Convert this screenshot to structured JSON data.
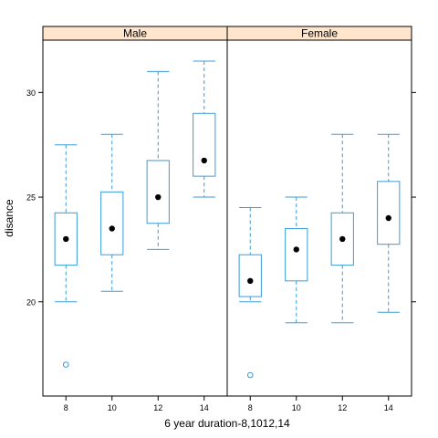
{
  "chart_data": {
    "type": "boxplot",
    "title": "",
    "xlabel": "6 year duration-8,1012,14",
    "ylabel": "disance",
    "ylim": [
      15.5,
      32.5
    ],
    "yticks": [
      20,
      25,
      30
    ],
    "categories": [
      "8",
      "10",
      "12",
      "14"
    ],
    "colors": {
      "box": "#3a9ad9",
      "strip_bg": "#ffe5cc",
      "median_dot": "#000000"
    },
    "panels": [
      {
        "name": "Male",
        "boxes": [
          {
            "x": "8",
            "min": 20.0,
            "q1": 21.75,
            "median": 23.0,
            "q3": 24.25,
            "max": 27.5,
            "outliers": [
              17.0
            ]
          },
          {
            "x": "10",
            "min": 20.5,
            "q1": 22.25,
            "median": 23.5,
            "q3": 25.25,
            "max": 28.0,
            "outliers": []
          },
          {
            "x": "12",
            "min": 22.5,
            "q1": 23.75,
            "median": 25.0,
            "q3": 26.75,
            "max": 31.0,
            "outliers": []
          },
          {
            "x": "14",
            "min": 25.0,
            "q1": 26.0,
            "median": 26.75,
            "q3": 29.0,
            "max": 31.5,
            "outliers": []
          }
        ]
      },
      {
        "name": "Female",
        "boxes": [
          {
            "x": "8",
            "min": 20.0,
            "q1": 20.25,
            "median": 21.0,
            "q3": 22.25,
            "max": 24.5,
            "outliers": [
              16.5
            ]
          },
          {
            "x": "10",
            "min": 19.0,
            "q1": 21.0,
            "median": 22.5,
            "q3": 23.5,
            "max": 25.0,
            "outliers": []
          },
          {
            "x": "12",
            "min": 19.0,
            "q1": 21.75,
            "median": 23.0,
            "q3": 24.25,
            "max": 28.0,
            "outliers": []
          },
          {
            "x": "14",
            "min": 19.5,
            "q1": 22.75,
            "median": 24.0,
            "q3": 25.75,
            "max": 28.0,
            "outliers": []
          }
        ]
      }
    ]
  }
}
